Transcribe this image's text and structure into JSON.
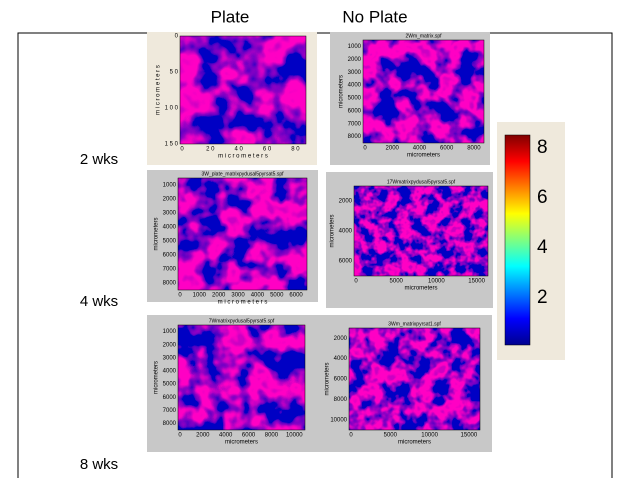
{
  "column_headers": [
    "Plate",
    "No Plate"
  ],
  "row_labels": [
    "2 wks",
    "4 wks",
    "8 wks"
  ],
  "panels": [
    {
      "title": null,
      "x_label": "m i c r o m e t e r s",
      "y_label": "m i c r o m e t e r s",
      "x_ticks": [
        "0",
        "2 0",
        "4 0",
        "6 0",
        "8 0"
      ],
      "y_ticks": [
        "0",
        "5 0",
        "1 0 0",
        "1 5 0"
      ]
    },
    {
      "title": "2Wm_matrix.spf",
      "x_label": "micrometers",
      "y_label": "micrometers",
      "x_ticks": [
        "0",
        "2000",
        "4000",
        "6000",
        "8000"
      ],
      "y_ticks": [
        "1000",
        "2000",
        "3000",
        "4000",
        "5000",
        "6000",
        "7000",
        "8000"
      ]
    },
    {
      "title": "3W_plate_matrixpydusal5pyrsat5.spf",
      "x_label": "m i c r o m e t e r s",
      "y_label": "micrometers",
      "x_ticks": [
        "0",
        "1000",
        "2000",
        "3000",
        "4000",
        "5000",
        "6000"
      ],
      "y_ticks": [
        "1000",
        "2000",
        "3000",
        "4000",
        "5000",
        "6000",
        "7000",
        "8000"
      ]
    },
    {
      "title": "17Wmatrixpydusal5pyrsat5.spf",
      "x_label": "micrometers",
      "y_label": "micrometers",
      "x_ticks": [
        "0",
        "5000",
        "10000",
        "15000"
      ],
      "y_ticks": [
        "2000",
        "4000",
        "6000"
      ]
    },
    {
      "title": "7Wmatrixpydusal5pyrsat5.spf",
      "x_label": "micrometers",
      "y_label": "micrometers",
      "x_ticks": [
        "0",
        "2000",
        "4000",
        "6000",
        "8000",
        "10000"
      ],
      "y_ticks": [
        "1000",
        "2000",
        "3000",
        "4000",
        "5000",
        "6000",
        "7000",
        "8000"
      ]
    },
    {
      "title": "3Wm_matrixpyrsat1.spf",
      "x_label": "micrometers",
      "y_label": "micrometers",
      "x_ticks": [
        "0",
        "5000",
        "10000",
        "15000"
      ],
      "y_ticks": [
        "2000",
        "4000",
        "6000",
        "8000",
        "10000"
      ]
    }
  ],
  "colorbar": {
    "ticks": [
      "8",
      "6",
      "4",
      "2"
    ]
  }
}
